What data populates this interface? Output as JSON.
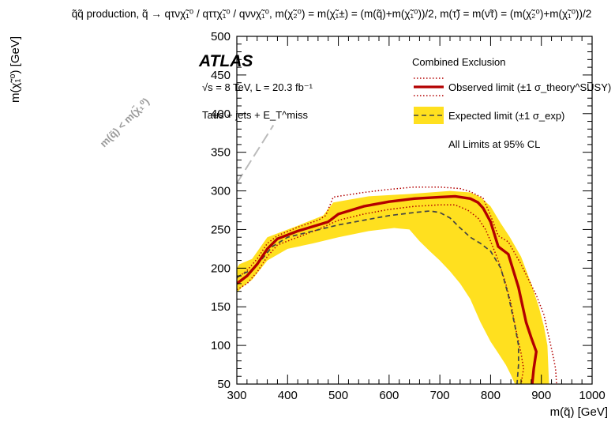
{
  "chart_data": {
    "type": "line",
    "title": "q̃q̃ production, q̃ → qτνχ̃₁⁰ / qττχ̃₁⁰ / qννχ̃₁⁰, m(χ̃₂⁰) = m(χ̃₁±) = (m(q̃)+m(χ̃₁⁰))/2, m(τ̃) = m(ν̃τ) = (m(χ̃₂⁰)+m(χ̃₁⁰))/2",
    "xlabel": "m(q̃) [GeV]",
    "ylabel": "m(χ̃₁⁰) [GeV]",
    "xlim": [
      300,
      1000
    ],
    "ylim": [
      50,
      500
    ],
    "x_ticks": [
      300,
      400,
      500,
      600,
      700,
      800,
      900,
      1000
    ],
    "y_ticks": [
      50,
      100,
      150,
      200,
      250,
      300,
      350,
      400,
      450,
      500
    ],
    "experiment": "ATLAS",
    "energy_lumi": "√s = 8 TeV, L = 20.3 fb⁻¹",
    "channel": "Taus + jets + E_T^miss",
    "legend": {
      "header": "Combined Exclusion",
      "observed_label": "Observed limit (±1 σ_theory^SUSY)",
      "expected_label": "Expected limit (±1 σ_exp)",
      "note": "All Limits at 95% CL",
      "position": "top-right"
    },
    "diagonal_label": "m(q̃) < m(χ̃₁⁰)",
    "colors": {
      "observed": "#b30000",
      "band": "#ffe01f",
      "expected": "#444444",
      "diagonal": "#bbbbbb"
    },
    "series": [
      {
        "name": "Observed limit",
        "x": [
          300,
          310,
          320,
          340,
          360,
          380,
          420,
          460,
          480,
          500,
          550,
          600,
          650,
          700,
          730,
          760,
          775,
          785,
          800,
          815,
          835,
          855,
          870,
          880,
          890,
          885,
          882
        ],
        "y": [
          180,
          185,
          190,
          205,
          225,
          238,
          248,
          256,
          260,
          270,
          280,
          286,
          290,
          292,
          293,
          290,
          285,
          278,
          260,
          228,
          218,
          175,
          130,
          110,
          92,
          70,
          50
        ]
      },
      {
        "name": "Observed +1σ theory",
        "x": [
          300,
          320,
          340,
          360,
          380,
          420,
          460,
          475,
          490,
          550,
          600,
          650,
          700,
          740,
          760,
          775,
          785,
          800,
          815,
          835,
          860,
          890,
          905,
          915,
          922,
          928,
          930
        ],
        "y": [
          187,
          197,
          212,
          232,
          242,
          253,
          262,
          268,
          292,
          298,
          302,
          305,
          305,
          303,
          299,
          294,
          291,
          268,
          242,
          234,
          205,
          165,
          140,
          110,
          90,
          70,
          50
        ]
      },
      {
        "name": "Observed -1σ theory",
        "x": [
          300,
          320,
          340,
          360,
          380,
          420,
          460,
          500,
          550,
          600,
          650,
          700,
          730,
          755,
          775,
          790,
          800,
          815,
          830,
          840,
          850,
          860,
          865,
          860
        ],
        "y": [
          172,
          180,
          195,
          215,
          230,
          240,
          250,
          262,
          270,
          276,
          280,
          282,
          282,
          275,
          265,
          250,
          235,
          210,
          180,
          155,
          120,
          90,
          70,
          50
        ]
      },
      {
        "name": "Expected limit",
        "x": [
          300,
          310,
          330,
          350,
          370,
          400,
          450,
          500,
          550,
          600,
          650,
          680,
          700,
          720,
          740,
          760,
          780,
          800,
          820,
          835,
          848,
          855,
          855,
          852
        ],
        "y": [
          188,
          192,
          198,
          212,
          228,
          240,
          248,
          256,
          262,
          268,
          272,
          274,
          272,
          265,
          252,
          240,
          232,
          222,
          200,
          165,
          125,
          100,
          75,
          50
        ]
      }
    ],
    "expected_band": {
      "upper": {
        "x": [
          300,
          305,
          330,
          360,
          420,
          470,
          490,
          560,
          640,
          720,
          760,
          780,
          800,
          820,
          838,
          860,
          880,
          895,
          905,
          912,
          915
        ],
        "y": [
          200,
          205,
          212,
          240,
          255,
          268,
          285,
          293,
          296,
          300,
          298,
          292,
          280,
          258,
          240,
          215,
          180,
          150,
          125,
          100,
          50
        ]
      },
      "lower": {
        "x": [
          300,
          310,
          330,
          360,
          400,
          450,
          500,
          560,
          610,
          640,
          660,
          680,
          700,
          720,
          740,
          760,
          780,
          800,
          815,
          830,
          840,
          848
        ],
        "y": [
          168,
          175,
          185,
          210,
          225,
          232,
          240,
          248,
          252,
          250,
          235,
          222,
          210,
          196,
          180,
          160,
          130,
          105,
          90,
          75,
          62,
          50
        ]
      }
    },
    "grid": false
  }
}
